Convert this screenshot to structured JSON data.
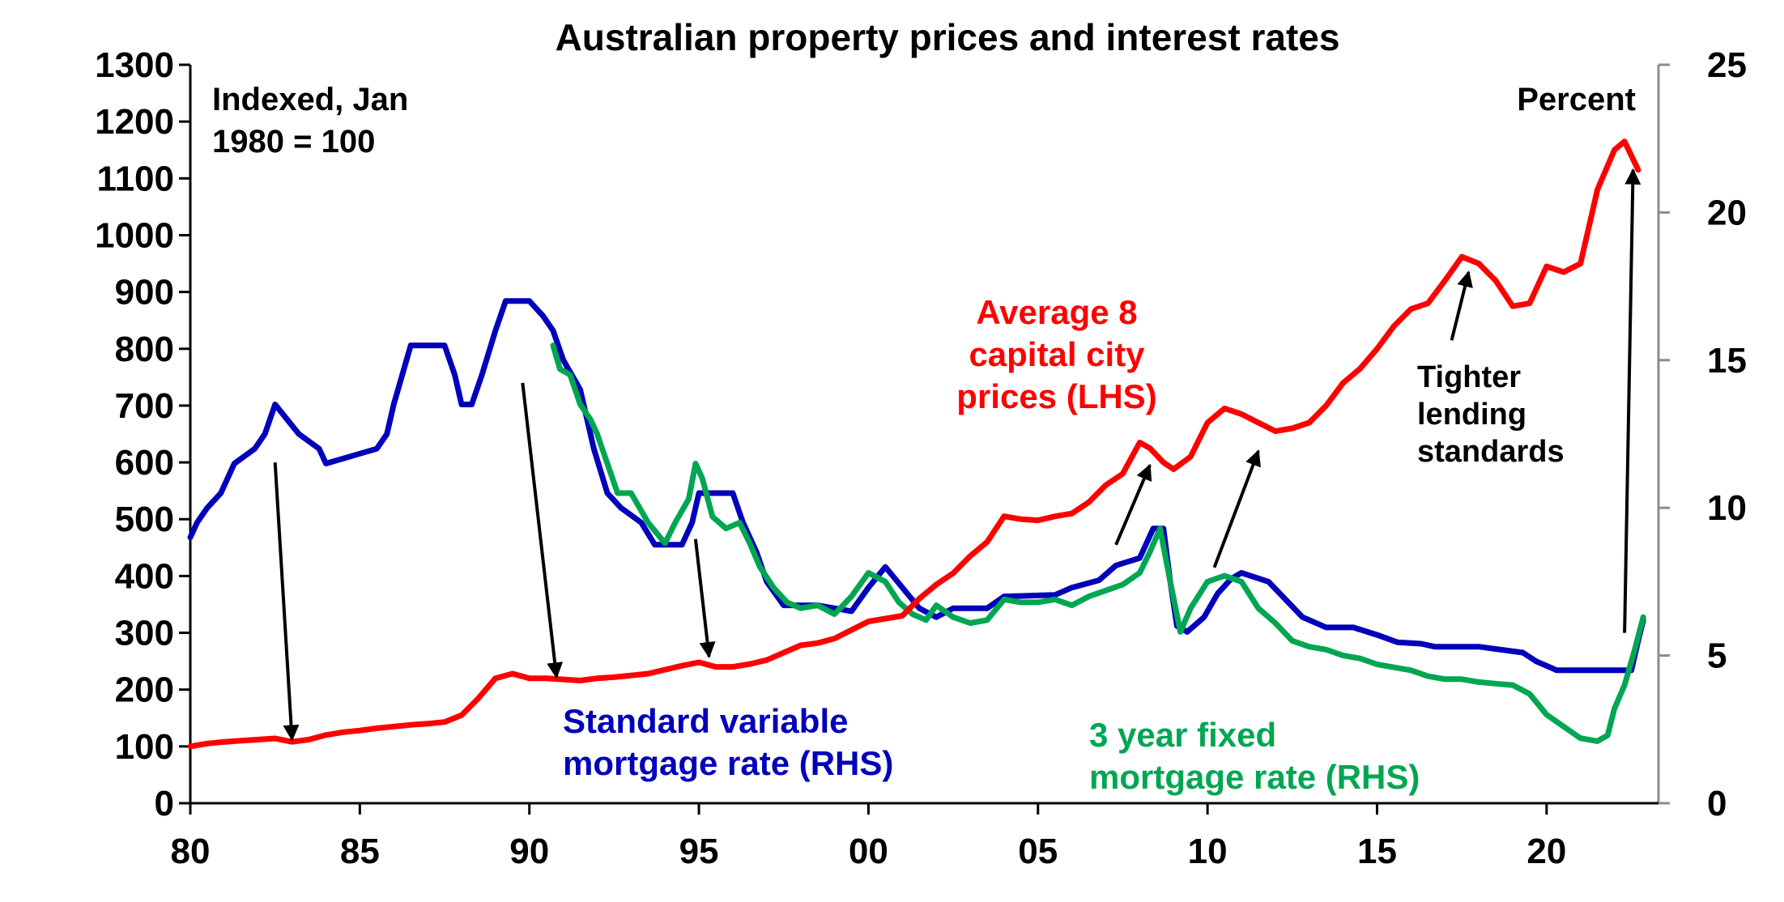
{
  "chart_data": {
    "type": "line",
    "title": "Australian property prices and interest rates",
    "left_axis": {
      "note_lines": [
        "Indexed, Jan",
        "1980 = 100"
      ],
      "range": [
        0,
        1300
      ],
      "ticks": [
        "0",
        "100",
        "200",
        "300",
        "400",
        "500",
        "600",
        "700",
        "800",
        "900",
        "1000",
        "1100",
        "1200",
        "1300"
      ]
    },
    "right_axis": {
      "note": "Percent",
      "range": [
        0,
        25
      ],
      "ticks": [
        "0",
        "5",
        "10",
        "15",
        "20",
        "25"
      ]
    },
    "x_axis": {
      "range": [
        1980,
        2023.3
      ],
      "ticks": [
        {
          "value": 1980,
          "label": "80"
        },
        {
          "value": 1985,
          "label": "85"
        },
        {
          "value": 1990,
          "label": "90"
        },
        {
          "value": 1995,
          "label": "95"
        },
        {
          "value": 2000,
          "label": "00"
        },
        {
          "value": 2005,
          "label": "05"
        },
        {
          "value": 2010,
          "label": "10"
        },
        {
          "value": 2015,
          "label": "15"
        },
        {
          "value": 2020,
          "label": "20"
        }
      ]
    },
    "colors": {
      "prices": "#ff0000",
      "variable": "#0000bb",
      "fixed": "#00a651",
      "axis": "#000000",
      "right_axis": "#8c8c8c"
    },
    "series": [
      {
        "name": "prices",
        "axis": "left",
        "label_lines": [
          "Average 8",
          "capital city",
          "prices (LHS)"
        ],
        "points": [
          [
            1980.0,
            100
          ],
          [
            1980.5,
            105
          ],
          [
            1981,
            108
          ],
          [
            1981.5,
            110
          ],
          [
            1982,
            112
          ],
          [
            1982.5,
            114
          ],
          [
            1983,
            108
          ],
          [
            1983.5,
            112
          ],
          [
            1984,
            120
          ],
          [
            1984.5,
            125
          ],
          [
            1985,
            128
          ],
          [
            1985.5,
            132
          ],
          [
            1986,
            135
          ],
          [
            1986.5,
            138
          ],
          [
            1987,
            140
          ],
          [
            1987.5,
            143
          ],
          [
            1988,
            155
          ],
          [
            1988.5,
            185
          ],
          [
            1989,
            220
          ],
          [
            1989.5,
            228
          ],
          [
            1990,
            220
          ],
          [
            1990.5,
            220
          ],
          [
            1991,
            218
          ],
          [
            1991.5,
            216
          ],
          [
            1992,
            220
          ],
          [
            1992.5,
            222
          ],
          [
            1993,
            225
          ],
          [
            1993.5,
            228
          ],
          [
            1994,
            235
          ],
          [
            1994.5,
            242
          ],
          [
            1995,
            248
          ],
          [
            1995.5,
            240
          ],
          [
            1996,
            240
          ],
          [
            1996.5,
            245
          ],
          [
            1997,
            252
          ],
          [
            1997.5,
            265
          ],
          [
            1998,
            278
          ],
          [
            1998.5,
            282
          ],
          [
            1999,
            290
          ],
          [
            1999.5,
            305
          ],
          [
            2000,
            320
          ],
          [
            2000.5,
            325
          ],
          [
            2001,
            330
          ],
          [
            2001.5,
            360
          ],
          [
            2002,
            385
          ],
          [
            2002.5,
            405
          ],
          [
            2003,
            435
          ],
          [
            2003.5,
            460
          ],
          [
            2004,
            505
          ],
          [
            2004.5,
            500
          ],
          [
            2005,
            498
          ],
          [
            2005.5,
            505
          ],
          [
            2006,
            510
          ],
          [
            2006.5,
            530
          ],
          [
            2007,
            560
          ],
          [
            2007.5,
            580
          ],
          [
            2008,
            635
          ],
          [
            2008.3,
            625
          ],
          [
            2008.7,
            600
          ],
          [
            2009,
            588
          ],
          [
            2009.5,
            610
          ],
          [
            2010,
            670
          ],
          [
            2010.5,
            695
          ],
          [
            2011,
            685
          ],
          [
            2011.5,
            670
          ],
          [
            2012,
            655
          ],
          [
            2012.5,
            660
          ],
          [
            2013,
            670
          ],
          [
            2013.5,
            700
          ],
          [
            2014,
            740
          ],
          [
            2014.5,
            765
          ],
          [
            2015,
            800
          ],
          [
            2015.5,
            840
          ],
          [
            2016,
            870
          ],
          [
            2016.5,
            880
          ],
          [
            2017,
            920
          ],
          [
            2017.5,
            962
          ],
          [
            2018,
            950
          ],
          [
            2018.5,
            920
          ],
          [
            2019,
            875
          ],
          [
            2019.5,
            880
          ],
          [
            2020,
            945
          ],
          [
            2020.5,
            935
          ],
          [
            2021,
            950
          ],
          [
            2021.5,
            1080
          ],
          [
            2022,
            1150
          ],
          [
            2022.3,
            1165
          ],
          [
            2022.5,
            1140
          ],
          [
            2022.7,
            1115
          ]
        ]
      },
      {
        "name": "variable",
        "axis": "right",
        "label_lines": [
          "Standard variable",
          "mortgage rate (RHS)"
        ],
        "points": [
          [
            1980.0,
            9.0
          ],
          [
            1980.2,
            9.5
          ],
          [
            1980.5,
            10.0
          ],
          [
            1980.9,
            10.5
          ],
          [
            1981.3,
            11.5
          ],
          [
            1981.9,
            12.0
          ],
          [
            1982.2,
            12.5
          ],
          [
            1982.5,
            13.5
          ],
          [
            1983.2,
            12.5
          ],
          [
            1983.8,
            12.0
          ],
          [
            1984,
            11.5
          ],
          [
            1985.5,
            12.0
          ],
          [
            1985.8,
            12.5
          ],
          [
            1986,
            13.5
          ],
          [
            1986.5,
            15.5
          ],
          [
            1987.2,
            15.5
          ],
          [
            1987.5,
            15.5
          ],
          [
            1987.8,
            14.5
          ],
          [
            1988,
            13.5
          ],
          [
            1988.3,
            13.5
          ],
          [
            1988.6,
            14.5
          ],
          [
            1989,
            16.0
          ],
          [
            1989.3,
            17.0
          ],
          [
            1990,
            17.0
          ],
          [
            1990.4,
            16.5
          ],
          [
            1990.7,
            16.0
          ],
          [
            1991,
            15.0
          ],
          [
            1991.5,
            14.0
          ],
          [
            1991.9,
            12.0
          ],
          [
            1992.3,
            10.5
          ],
          [
            1992.7,
            10.0
          ],
          [
            1993.3,
            9.5
          ],
          [
            1993.7,
            8.75
          ],
          [
            1994.5,
            8.75
          ],
          [
            1994.8,
            9.5
          ],
          [
            1995,
            10.5
          ],
          [
            1996,
            10.5
          ],
          [
            1996.3,
            9.5
          ],
          [
            1996.7,
            8.5
          ],
          [
            1997,
            7.5
          ],
          [
            1997.5,
            6.7
          ],
          [
            1998.5,
            6.7
          ],
          [
            1999.5,
            6.5
          ],
          [
            2000,
            7.3
          ],
          [
            2000.5,
            8.0
          ],
          [
            2001,
            7.3
          ],
          [
            2001.5,
            6.6
          ],
          [
            2002,
            6.3
          ],
          [
            2002.5,
            6.6
          ],
          [
            2003.5,
            6.6
          ],
          [
            2004,
            7.0
          ],
          [
            2005.5,
            7.05
          ],
          [
            2006,
            7.3
          ],
          [
            2006.8,
            7.55
          ],
          [
            2007.3,
            8.05
          ],
          [
            2008,
            8.3
          ],
          [
            2008.4,
            9.3
          ],
          [
            2008.7,
            9.3
          ],
          [
            2008.9,
            7.5
          ],
          [
            2009.1,
            6.0
          ],
          [
            2009.4,
            5.8
          ],
          [
            2009.9,
            6.3
          ],
          [
            2010.3,
            7.1
          ],
          [
            2010.7,
            7.6
          ],
          [
            2011,
            7.8
          ],
          [
            2011.8,
            7.5
          ],
          [
            2012.3,
            6.9
          ],
          [
            2012.8,
            6.3
          ],
          [
            2013.5,
            5.95
          ],
          [
            2014.3,
            5.95
          ],
          [
            2015,
            5.7
          ],
          [
            2015.6,
            5.45
          ],
          [
            2016.3,
            5.4
          ],
          [
            2016.7,
            5.3
          ],
          [
            2018,
            5.3
          ],
          [
            2019.3,
            5.1
          ],
          [
            2019.7,
            4.8
          ],
          [
            2020.3,
            4.5
          ],
          [
            2022.5,
            4.5
          ],
          [
            2022.7,
            5.5
          ],
          [
            2022.85,
            6.2
          ]
        ]
      },
      {
        "name": "fixed",
        "axis": "right",
        "label_lines": [
          "3 year fixed",
          "mortgage rate (RHS)"
        ],
        "points": [
          [
            1990.7,
            15.5
          ],
          [
            1990.9,
            14.7
          ],
          [
            1991.2,
            14.5
          ],
          [
            1991.5,
            13.5
          ],
          [
            1991.8,
            13.0
          ],
          [
            1992,
            12.5
          ],
          [
            1992.3,
            11.5
          ],
          [
            1992.6,
            10.5
          ],
          [
            1993,
            10.5
          ],
          [
            1993.5,
            9.5
          ],
          [
            1994,
            8.8
          ],
          [
            1994.3,
            9.5
          ],
          [
            1994.7,
            10.3
          ],
          [
            1994.9,
            11.5
          ],
          [
            1995.1,
            11.0
          ],
          [
            1995.4,
            9.7
          ],
          [
            1995.8,
            9.3
          ],
          [
            1996.2,
            9.5
          ],
          [
            1996.5,
            8.8
          ],
          [
            1996.8,
            8.0
          ],
          [
            1997.2,
            7.3
          ],
          [
            1997.6,
            6.8
          ],
          [
            1998,
            6.6
          ],
          [
            1998.5,
            6.7
          ],
          [
            1999,
            6.4
          ],
          [
            1999.5,
            7.0
          ],
          [
            2000,
            7.8
          ],
          [
            2000.5,
            7.5
          ],
          [
            2000.9,
            6.8
          ],
          [
            2001.3,
            6.4
          ],
          [
            2001.7,
            6.2
          ],
          [
            2002,
            6.7
          ],
          [
            2002.5,
            6.3
          ],
          [
            2003,
            6.1
          ],
          [
            2003.5,
            6.2
          ],
          [
            2004,
            6.9
          ],
          [
            2004.5,
            6.8
          ],
          [
            2005,
            6.8
          ],
          [
            2005.5,
            6.9
          ],
          [
            2006,
            6.7
          ],
          [
            2006.5,
            7.0
          ],
          [
            2007,
            7.2
          ],
          [
            2007.5,
            7.4
          ],
          [
            2008,
            7.8
          ],
          [
            2008.3,
            8.5
          ],
          [
            2008.6,
            9.3
          ],
          [
            2008.9,
            7.5
          ],
          [
            2009.2,
            5.8
          ],
          [
            2009.5,
            6.6
          ],
          [
            2010,
            7.5
          ],
          [
            2010.5,
            7.7
          ],
          [
            2011,
            7.5
          ],
          [
            2011.5,
            6.6
          ],
          [
            2012,
            6.1
          ],
          [
            2012.5,
            5.5
          ],
          [
            2013,
            5.3
          ],
          [
            2013.5,
            5.2
          ],
          [
            2014,
            5.0
          ],
          [
            2014.5,
            4.9
          ],
          [
            2015,
            4.7
          ],
          [
            2015.5,
            4.6
          ],
          [
            2016,
            4.5
          ],
          [
            2016.5,
            4.3
          ],
          [
            2017,
            4.2
          ],
          [
            2017.5,
            4.2
          ],
          [
            2018,
            4.1
          ],
          [
            2018.5,
            4.05
          ],
          [
            2019,
            4.0
          ],
          [
            2019.5,
            3.7
          ],
          [
            2020,
            3.0
          ],
          [
            2020.5,
            2.6
          ],
          [
            2021,
            2.2
          ],
          [
            2021.5,
            2.1
          ],
          [
            2021.8,
            2.3
          ],
          [
            2022,
            3.2
          ],
          [
            2022.3,
            4.0
          ],
          [
            2022.6,
            5.2
          ],
          [
            2022.85,
            6.3
          ]
        ]
      }
    ],
    "annotations": {
      "tighter_lending_lines": [
        "Tighter",
        "lending",
        "standards"
      ]
    }
  }
}
